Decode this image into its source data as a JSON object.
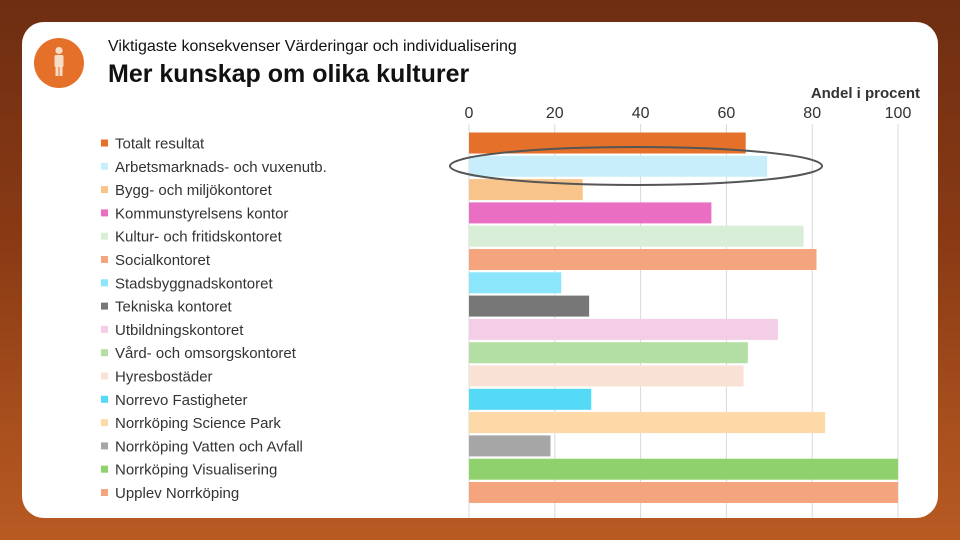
{
  "slide": {
    "subtitle": "Viktigaste konsekvenser Värderingar och individualisering",
    "title": "Mer kunskap om olika kulturer",
    "icon": "person-icon",
    "accent": "#e5702a"
  },
  "chart_data": {
    "type": "bar",
    "orientation": "horizontal",
    "title": "Mer kunskap om olika kulturer",
    "xlabel": "Andel i procent",
    "xlim": [
      0,
      100
    ],
    "ticks": [
      0,
      20,
      40,
      60,
      80,
      100
    ],
    "grid": true,
    "legend_position": "left",
    "highlighted_category": "Arbetsmarknads- och vuxenutb.",
    "categories": [
      "Totalt resultat",
      "Arbetsmarknads- och vuxenutb.",
      "Bygg- och miljökontoret",
      "Kommunstyrelsens kontor",
      "Kultur- och fritidskontoret",
      "Socialkontoret",
      "Stadsbyggnadskontoret",
      "Tekniska kontoret",
      "Utbildningskontoret",
      "Vård- och omsorgskontoret",
      "Hyresbostäder",
      "Norrevo Fastigheter",
      "Norrköping Science Park",
      "Norrköping Vatten och Avfall",
      "Norrköping Visualisering",
      "Upplev Norrköping"
    ],
    "values": [
      64.5,
      69.5,
      26.5,
      56.5,
      78,
      81,
      21.5,
      28,
      72,
      65,
      64,
      28.5,
      83,
      19,
      100,
      100
    ],
    "colors": [
      "#e5702a",
      "#c8eefc",
      "#f8c48a",
      "#ea6fc2",
      "#d8eed6",
      "#f4a57d",
      "#8be5fb",
      "#777777",
      "#f4cde6",
      "#b3dea4",
      "#f9e1d6",
      "#54d9f6",
      "#fdd9a8",
      "#a6a6a6",
      "#8fd16d",
      "#f4a57d"
    ]
  }
}
